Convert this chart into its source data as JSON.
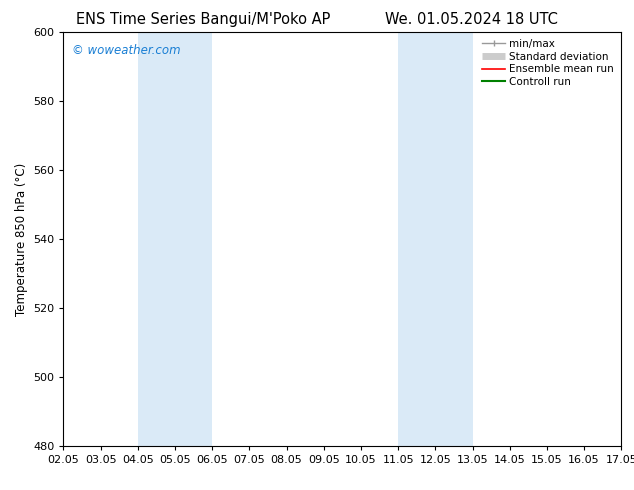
{
  "title_left": "ENS Time Series Bangui/M'Poko AP",
  "title_right": "We. 01.05.2024 18 UTC",
  "ylabel": "Temperature 850 hPa (°C)",
  "xlabel": "",
  "ylim": [
    480,
    600
  ],
  "yticks": [
    480,
    500,
    520,
    540,
    560,
    580,
    600
  ],
  "xlim": [
    0,
    15
  ],
  "xtick_labels": [
    "02.05",
    "03.05",
    "04.05",
    "05.05",
    "06.05",
    "07.05",
    "08.05",
    "09.05",
    "10.05",
    "11.05",
    "12.05",
    "13.05",
    "14.05",
    "15.05",
    "16.05",
    "17.05"
  ],
  "shaded_bands": [
    {
      "x_start": 2,
      "x_end": 4,
      "color": "#daeaf7"
    },
    {
      "x_start": 9,
      "x_end": 11,
      "color": "#daeaf7"
    }
  ],
  "background_color": "#ffffff",
  "plot_bg_color": "#ffffff",
  "watermark": "© woweather.com",
  "watermark_color": "#1a7fd4",
  "legend_items": [
    {
      "label": "min/max",
      "color": "#999999",
      "lw": 1.0
    },
    {
      "label": "Standard deviation",
      "color": "#cccccc",
      "lw": 5
    },
    {
      "label": "Ensemble mean run",
      "color": "#ff0000",
      "lw": 1.2
    },
    {
      "label": "Controll run",
      "color": "#008000",
      "lw": 1.5
    }
  ],
  "title_fontsize": 10.5,
  "tick_fontsize": 8,
  "ylabel_fontsize": 8.5,
  "watermark_fontsize": 8.5,
  "legend_fontsize": 7.5
}
